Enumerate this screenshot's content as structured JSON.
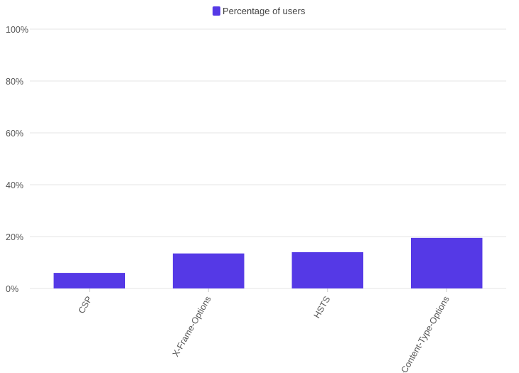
{
  "chart_data": {
    "type": "bar",
    "categories": [
      "CSP",
      "X-Frame-Options",
      "HSTS",
      "X-Content-Type-Options"
    ],
    "series": [
      {
        "name": "Percentage of users",
        "values": [
          6,
          13.5,
          14,
          19.5
        ]
      }
    ],
    "ylim": [
      0,
      100
    ],
    "yticks": [
      "0%",
      "20%",
      "40%",
      "60%",
      "80%",
      "100%"
    ],
    "grid": true,
    "legend_position": "top-center",
    "colors": {
      "bar": "#5539e6"
    }
  }
}
